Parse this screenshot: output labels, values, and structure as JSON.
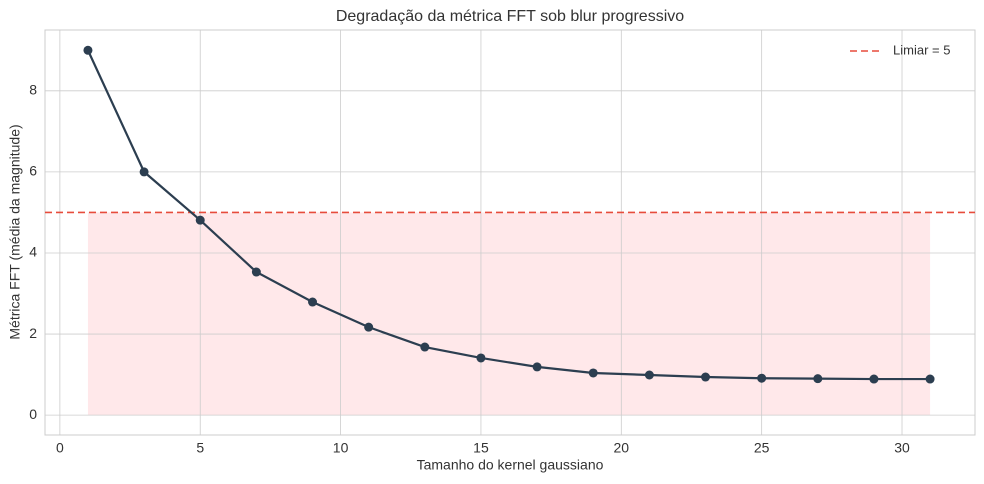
{
  "chart_data": {
    "type": "line",
    "title": "Degradação da métrica FFT sob blur progressivo",
    "x_label": "Tamanho do kernel gaussiano",
    "y_label": "Métrica FFT (média da magnitude)",
    "x": [
      1,
      3,
      5,
      7,
      9,
      11,
      13,
      15,
      17,
      19,
      21,
      23,
      25,
      27,
      29,
      31
    ],
    "series": [
      {
        "name": null,
        "color": "#2c3e50",
        "values": [
          9.0,
          6.0,
          4.81,
          3.53,
          2.79,
          2.17,
          1.68,
          1.41,
          1.19,
          1.04,
          0.99,
          0.94,
          0.91,
          0.9,
          0.89,
          0.89
        ]
      }
    ],
    "threshold": {
      "value": 5,
      "name": "Limiar = 5",
      "color": "#e74c3c",
      "fill": "#ffe8ea"
    },
    "xlim": [
      -0.53,
      32.6
    ],
    "ylim": [
      -0.49,
      9.5
    ],
    "xticks": [
      0,
      5,
      10,
      15,
      20,
      25,
      30
    ],
    "yticks": [
      0,
      2,
      4,
      6,
      8
    ],
    "grid": true,
    "legend": "upper right"
  }
}
